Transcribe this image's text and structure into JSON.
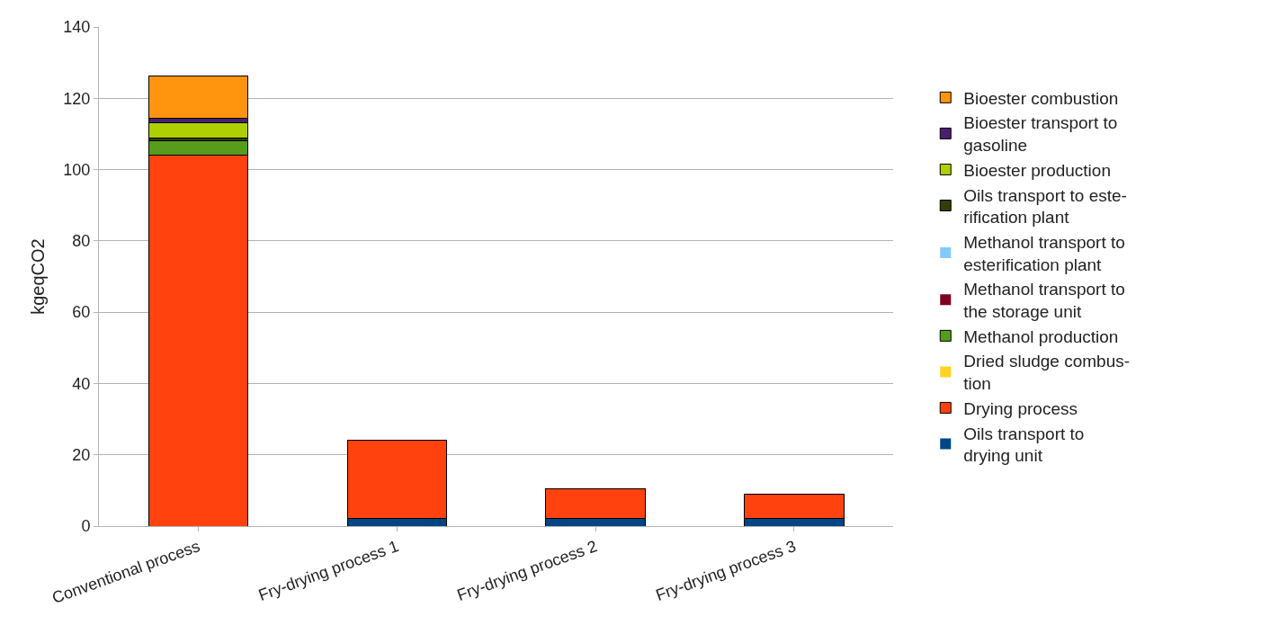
{
  "chart_data": {
    "type": "bar",
    "stacked": true,
    "ylabel": "kgeqCO2",
    "categories": [
      "Conventional process",
      "Fry-drying process 1",
      "Fry-drying process 2",
      "Fry-drying process 3"
    ],
    "series": [
      {
        "name": "Oils transport to\ndrying unit",
        "color": "#004586",
        "values": [
          0,
          2.1,
          2.1,
          2.1
        ]
      },
      {
        "name": "Drying process",
        "color": "#ff420e",
        "values": [
          104,
          22.1,
          8.3,
          6.8
        ]
      },
      {
        "name": "Dried sludge combus-\ntion",
        "color": "#ffd320",
        "values": [
          0,
          0,
          0,
          0
        ]
      },
      {
        "name": "Methanol production",
        "color": "#579d1c",
        "values": [
          4,
          0,
          0,
          0
        ]
      },
      {
        "name": "Methanol transport to\nthe storage unit",
        "color": "#7e0021",
        "values": [
          0,
          0,
          0,
          0
        ]
      },
      {
        "name": "Methanol transport to\nesterification plant",
        "color": "#83caff",
        "values": [
          0,
          0,
          0,
          0
        ]
      },
      {
        "name": "Oils transport to este-\nrification plant",
        "color": "#314004",
        "values": [
          0.8,
          0,
          0,
          0
        ]
      },
      {
        "name": "Bioester production",
        "color": "#aecf00",
        "values": [
          4.4,
          0,
          0,
          0
        ]
      },
      {
        "name": "Bioester transport to\ngasoline",
        "color": "#4b1f6f",
        "values": [
          1.2,
          0,
          0,
          0
        ]
      },
      {
        "name": "Bioester combustion",
        "color": "#ff950e",
        "values": [
          11.8,
          0,
          0,
          0
        ]
      }
    ],
    "ylim": [
      0,
      140
    ],
    "yticks": [
      0,
      20,
      40,
      60,
      80,
      100,
      120,
      140
    ],
    "grid": "y",
    "legend": "right"
  }
}
